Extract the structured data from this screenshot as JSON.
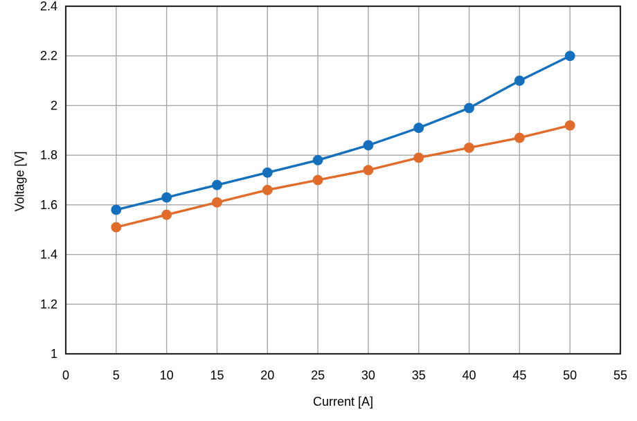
{
  "chart_data": {
    "type": "line",
    "title": "",
    "xlabel": "Current [A]",
    "ylabel": "Voltage [V]",
    "x": [
      5,
      10,
      15,
      20,
      25,
      30,
      35,
      40,
      45,
      50
    ],
    "series": [
      {
        "name": "blue-curve",
        "color": "#1470bd",
        "values": [
          1.58,
          1.63,
          1.68,
          1.73,
          1.78,
          1.84,
          1.91,
          1.99,
          2.1,
          2.2
        ]
      },
      {
        "name": "orange-curve",
        "color": "#e06b2a",
        "values": [
          1.51,
          1.56,
          1.61,
          1.66,
          1.7,
          1.74,
          1.79,
          1.83,
          1.87,
          1.92
        ]
      }
    ],
    "xlim": [
      0,
      55
    ],
    "ylim": [
      1,
      2.4
    ],
    "x_ticks": [
      0,
      5,
      10,
      15,
      20,
      25,
      30,
      35,
      40,
      45,
      50,
      55
    ],
    "x_tick_labels": [
      "0",
      "5",
      "10",
      "15",
      "20",
      "25",
      "30",
      "35",
      "40",
      "45",
      "50",
      "55"
    ],
    "y_ticks": [
      1,
      1.2,
      1.4,
      1.6,
      1.8,
      2,
      2.2,
      2.4
    ],
    "y_tick_labels": [
      "1",
      "1.2",
      "1.4",
      "1.6",
      "1.8",
      "2",
      "2.2",
      "2.4"
    ],
    "grid": true,
    "legend": false,
    "styles": {
      "background": "#ffffff",
      "grid_color": "#a6a6a6",
      "frame_color": "#262626",
      "text_color": "#000000"
    }
  }
}
